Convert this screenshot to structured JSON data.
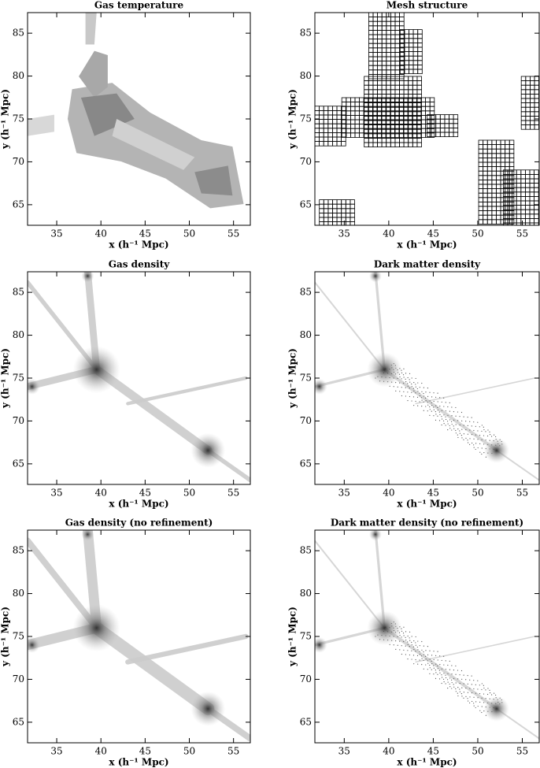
{
  "chart_data": [
    {
      "type": "image",
      "title": "Gas temperature",
      "xlabel": "x (h⁻¹ Mpc)",
      "ylabel": "y (h⁻¹ Mpc)",
      "xlim": [
        31.7,
        56.9
      ],
      "ylim": [
        62.6,
        87.4
      ],
      "xticks": [
        35,
        40,
        45,
        50,
        55
      ],
      "yticks": [
        65,
        70,
        75,
        80,
        85
      ]
    },
    {
      "type": "image",
      "title": "Mesh structure",
      "xlabel": "x (h⁻¹ Mpc)",
      "ylabel": "y (h⁻¹ Mpc)",
      "xlim": [
        31.7,
        56.9
      ],
      "ylim": [
        62.6,
        87.4
      ],
      "xticks": [
        35,
        40,
        45,
        50,
        55
      ],
      "yticks": [
        65,
        70,
        75,
        80,
        85
      ]
    },
    {
      "type": "image",
      "title": "Gas density",
      "xlabel": "x (h⁻¹ Mpc)",
      "ylabel": "y (h⁻¹ Mpc)",
      "xlim": [
        31.7,
        56.9
      ],
      "ylim": [
        62.6,
        87.4
      ],
      "xticks": [
        35,
        40,
        45,
        50,
        55
      ],
      "yticks": [
        65,
        70,
        75,
        80,
        85
      ]
    },
    {
      "type": "image",
      "title": "Dark matter density",
      "xlabel": "x (h⁻¹ Mpc)",
      "ylabel": "y (h⁻¹ Mpc)",
      "xlim": [
        31.7,
        56.9
      ],
      "ylim": [
        62.6,
        87.4
      ],
      "xticks": [
        35,
        40,
        45,
        50,
        55
      ],
      "yticks": [
        65,
        70,
        75,
        80,
        85
      ]
    },
    {
      "type": "image",
      "title": "Gas density (no refinement)",
      "xlabel": "x (h⁻¹ Mpc)",
      "ylabel": "y (h⁻¹ Mpc)",
      "xlim": [
        31.7,
        56.9
      ],
      "ylim": [
        62.6,
        87.4
      ],
      "xticks": [
        35,
        40,
        45,
        50,
        55
      ],
      "yticks": [
        65,
        70,
        75,
        80,
        85
      ]
    },
    {
      "type": "image",
      "title": "Dark matter density (no refinement)",
      "xlabel": "x (h⁻¹ Mpc)",
      "ylabel": "y (h⁻¹ Mpc)",
      "xlim": [
        31.7,
        56.9
      ],
      "ylim": [
        62.6,
        87.4
      ],
      "xticks": [
        35,
        40,
        45,
        50,
        55
      ],
      "yticks": [
        65,
        70,
        75,
        80,
        85
      ]
    }
  ]
}
